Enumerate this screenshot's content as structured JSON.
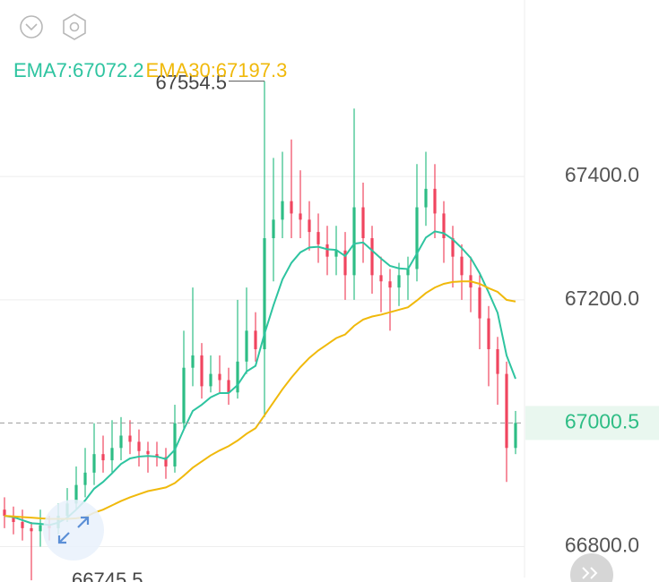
{
  "chart_data": {
    "type": "candlestick",
    "up_color": "#2ebd85",
    "down_color": "#f0455f",
    "ylim": [
      66750,
      67686
    ],
    "yticks": [
      {
        "value": 67400,
        "label": "67400.0"
      },
      {
        "value": 67200,
        "label": "67200.0"
      },
      {
        "value": 66800,
        "label": "66800.0"
      }
    ],
    "grid": true,
    "last_price": 67000.5,
    "open": [
      66860,
      66850,
      66840,
      66830,
      66825,
      66835,
      66830,
      66850,
      66870,
      66900,
      66920,
      66950,
      66940,
      66960,
      66980,
      66970,
      66955,
      66950,
      66945,
      66930,
      67000,
      67090,
      67110,
      67060,
      67080,
      67070,
      67050,
      67100,
      67150,
      67120,
      67300,
      67330,
      67360,
      67340,
      67330,
      67310,
      67290,
      67270,
      67280,
      67240,
      67350,
      67300,
      67240,
      67230,
      67220,
      67240,
      67250,
      67350,
      67380,
      67340,
      67300,
      67270,
      67240,
      67220,
      67170,
      67120,
      67080,
      66960
    ],
    "high": [
      66880,
      66865,
      66860,
      66840,
      66860,
      66850,
      66870,
      66895,
      66930,
      66960,
      67000,
      66980,
      67005,
      67010,
      67005,
      66990,
      66970,
      66970,
      66960,
      67030,
      67150,
      67220,
      67130,
      67110,
      67110,
      67090,
      67200,
      67220,
      67180,
      67554.5,
      67430,
      67440,
      67460,
      67410,
      67360,
      67340,
      67320,
      67320,
      67310,
      67510,
      67390,
      67320,
      67270,
      67250,
      67260,
      67270,
      67420,
      67440,
      67420,
      67360,
      67320,
      67290,
      67270,
      67240,
      67190,
      67140,
      67100,
      67020
    ],
    "low": [
      66830,
      66820,
      66810,
      66745.5,
      66800,
      66810,
      66820,
      66840,
      66860,
      66880,
      66900,
      66920,
      66920,
      66940,
      66950,
      66930,
      66920,
      66930,
      66910,
      66920,
      66990,
      67060,
      67040,
      67050,
      67050,
      67030,
      67040,
      67080,
      67100,
      67010,
      67230,
      67300,
      67300,
      67300,
      67280,
      67260,
      67240,
      67240,
      67200,
      67200,
      67260,
      67210,
      67180,
      67150,
      67190,
      67200,
      67230,
      67320,
      67300,
      67260,
      67220,
      67200,
      67180,
      67120,
      67060,
      67030,
      66905,
      66950
    ],
    "close": [
      66850,
      66840,
      66830,
      66825,
      66835,
      66830,
      66850,
      66870,
      66900,
      66920,
      66950,
      66940,
      66960,
      66980,
      66970,
      66955,
      66950,
      66945,
      66930,
      67000,
      67090,
      67110,
      67060,
      67080,
      67070,
      67050,
      67100,
      67150,
      67120,
      67300,
      67330,
      67360,
      67340,
      67330,
      67310,
      67290,
      67270,
      67280,
      67240,
      67350,
      67300,
      67240,
      67230,
      67220,
      67240,
      67250,
      67350,
      67380,
      67340,
      67300,
      67270,
      67240,
      67220,
      67170,
      67120,
      67080,
      66960,
      67000.5
    ],
    "series": [
      {
        "label": "EMA7:67072.2",
        "color": "#2ec4a0",
        "values": [
          66850,
          66848,
          66843,
          66838,
          66837,
          66835,
          66839,
          66847,
          66860,
          66875,
          66894,
          66905,
          66919,
          66934,
          66943,
          66946,
          66947,
          66946,
          66942,
          66957,
          66990,
          67020,
          67030,
          67042,
          67049,
          67049,
          67062,
          67084,
          67093,
          67145,
          67191,
          67233,
          67260,
          67277,
          67285,
          67286,
          67282,
          67281,
          67271,
          67291,
          67293,
          67280,
          67267,
          67255,
          67251,
          67250,
          67275,
          67301,
          67311,
          67308,
          67298,
          67284,
          67268,
          67243,
          67212,
          67179,
          67110,
          67072.2
        ]
      },
      {
        "label": "EMA30:67197.3",
        "color": "#f0b90b",
        "values": [
          66850,
          66849,
          66848,
          66847,
          66846,
          66845,
          66845,
          66845,
          66846,
          66848,
          66855,
          66860,
          66867,
          66874,
          66880,
          66885,
          66890,
          66893,
          66896,
          66903,
          66915,
          66928,
          66938,
          66948,
          66956,
          66963,
          66972,
          66983,
          66992,
          67013,
          67034,
          67055,
          67074,
          67091,
          67106,
          67118,
          67128,
          67138,
          67144,
          67158,
          67168,
          67173,
          67176,
          67180,
          67184,
          67188,
          67199,
          67211,
          67220,
          67226,
          67229,
          67230,
          67230,
          67226,
          67219,
          67213,
          67200,
          67197.3
        ]
      }
    ]
  }
}
